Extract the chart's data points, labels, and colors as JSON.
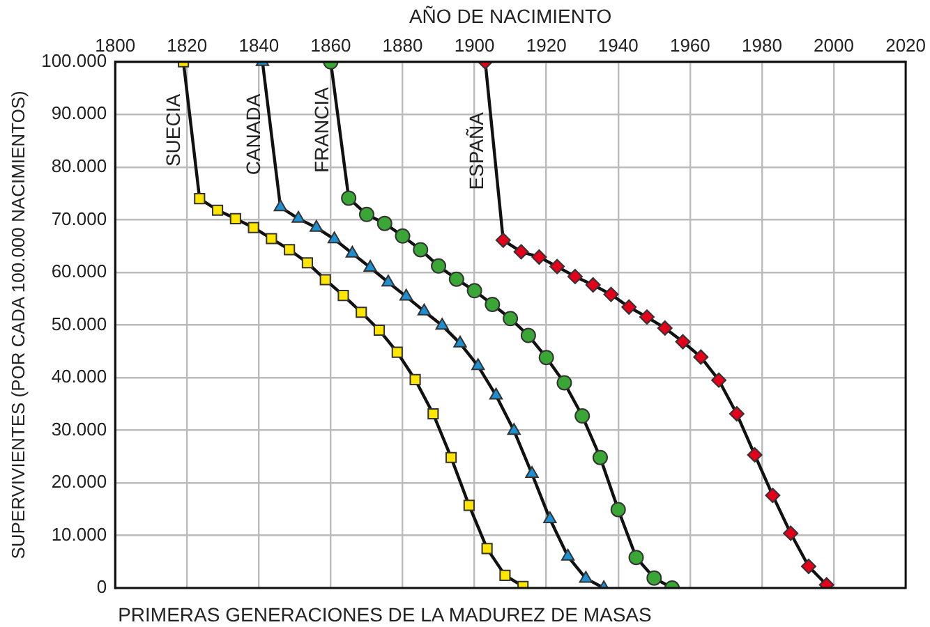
{
  "chart_data": {
    "type": "line",
    "xlabel": "AÑO DE NACIMIENTO",
    "ylabel": "SUPERVIVIENTES (POR CADA 100.000 NACIMIENTOS)",
    "annotations": [
      "PRIMERAS GENERACIONES DE LA MADUREZ DE MASAS"
    ],
    "xlim": [
      1800,
      2020
    ],
    "xticks": [
      1800,
      1820,
      1840,
      1860,
      1880,
      1900,
      1920,
      1940,
      1960,
      1980,
      2000,
      2020
    ],
    "ylim": [
      0,
      100000
    ],
    "yticks": [
      {
        "value": 0,
        "label": "0"
      },
      {
        "value": 10000,
        "label": "10.000"
      },
      {
        "value": 20000,
        "label": "20.000"
      },
      {
        "value": 30000,
        "label": "30.000"
      },
      {
        "value": 40000,
        "label": "40.000"
      },
      {
        "value": 50000,
        "label": "50.000"
      },
      {
        "value": 60000,
        "label": "60.000"
      },
      {
        "value": 70000,
        "label": "70.000"
      },
      {
        "value": 80000,
        "label": "80.000"
      },
      {
        "value": 90000,
        "label": "90.000"
      },
      {
        "value": 100000,
        "label": "100.000"
      }
    ],
    "grid": true,
    "legend": false,
    "line_style": "solid",
    "series": [
      {
        "name": "SUECIA",
        "color": "#ffe600",
        "marker": "square",
        "x": [
          1819,
          1823.5,
          1828.5,
          1833.5,
          1838.5,
          1843.5,
          1848.5,
          1853.5,
          1858.5,
          1863.5,
          1868.5,
          1873.5,
          1878.5,
          1883.5,
          1888.5,
          1893.5,
          1898.5,
          1903.5,
          1908.5,
          1913.5
        ],
        "values": [
          100000,
          74000,
          71800,
          70200,
          68500,
          66400,
          64300,
          61800,
          58600,
          55600,
          52400,
          49000,
          44800,
          39600,
          33100,
          24800,
          15700,
          7500,
          2400,
          300
        ]
      },
      {
        "name": "CANADA",
        "color": "#1e8fd0",
        "marker": "triangle",
        "x": [
          1841,
          1846,
          1851,
          1856,
          1861,
          1866,
          1871,
          1876,
          1881,
          1886,
          1891,
          1896,
          1901,
          1906,
          1911,
          1916,
          1921,
          1926,
          1931,
          1936
        ],
        "values": [
          100000,
          72400,
          70200,
          68500,
          66300,
          63600,
          60900,
          58100,
          55400,
          52600,
          49900,
          46500,
          42200,
          36600,
          29900,
          21700,
          13100,
          6000,
          1800,
          0
        ]
      },
      {
        "name": "FRANCIA",
        "color": "#3aa635",
        "marker": "circle",
        "x": [
          1860,
          1865,
          1870,
          1875,
          1880,
          1885,
          1890,
          1895,
          1900,
          1905,
          1910,
          1915,
          1920,
          1925,
          1930,
          1935,
          1940,
          1945,
          1950,
          1955
        ],
        "values": [
          100000,
          74100,
          71000,
          69300,
          66900,
          64300,
          61200,
          58700,
          56500,
          53900,
          51200,
          48000,
          43800,
          39000,
          32700,
          24800,
          14900,
          5800,
          1900,
          0
        ]
      },
      {
        "name": "ESPAÑA",
        "color": "#e3001b",
        "marker": "diamond",
        "x": [
          1903,
          1908,
          1913,
          1918,
          1923,
          1928,
          1933,
          1938,
          1943,
          1948,
          1953,
          1958,
          1963,
          1968,
          1973,
          1978,
          1983,
          1988,
          1993,
          1998
        ],
        "values": [
          100000,
          66100,
          63900,
          62900,
          61100,
          59200,
          57600,
          55800,
          53400,
          51500,
          49400,
          46800,
          43900,
          39500,
          33100,
          25300,
          17600,
          10400,
          4100,
          600
        ]
      }
    ]
  }
}
